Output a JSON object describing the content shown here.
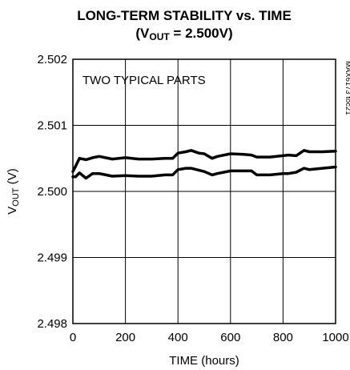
{
  "chart_data": {
    "type": "line",
    "title_line1": "LONG-TERM STABILITY vs. TIME",
    "title_line2_open": "(V",
    "title_line2_sub": "OUT",
    "title_line2_close": " = 2.500V)",
    "xlabel": "TIME (hours)",
    "ylabel_main": "V",
    "ylabel_sub": "OUT",
    "ylabel_unit": " (V)",
    "annotation": "TWO TYPICAL PARTS",
    "figure_code": "MAX6173 toc21",
    "xlim": [
      0,
      1000
    ],
    "ylim": [
      2.498,
      2.502
    ],
    "x_ticks": [
      0,
      200,
      400,
      600,
      800,
      1000
    ],
    "x_tick_labels": [
      "0",
      "200",
      "400",
      "600",
      "800",
      "1000"
    ],
    "y_ticks": [
      2.498,
      2.499,
      2.5,
      2.501,
      2.502
    ],
    "y_tick_labels": [
      "2.498",
      "2.499",
      "2.500",
      "2.501",
      "2.502"
    ],
    "grid": true,
    "series": [
      {
        "x": [
          0,
          10,
          25,
          50,
          75,
          100,
          150,
          200,
          250,
          300,
          350,
          380,
          400,
          430,
          450,
          480,
          500,
          530,
          550,
          600,
          650,
          680,
          700,
          750,
          800,
          820,
          850,
          880,
          900,
          950,
          1000
        ],
        "values": [
          2.5003,
          2.50038,
          2.5005,
          2.50048,
          2.50051,
          2.50053,
          2.50049,
          2.50051,
          2.50049,
          2.50049,
          2.5005,
          2.5005,
          2.50058,
          2.5006,
          2.50062,
          2.50058,
          2.50057,
          2.5005,
          2.50053,
          2.50057,
          2.50056,
          2.50055,
          2.50052,
          2.50052,
          2.50054,
          2.50055,
          2.50054,
          2.50062,
          2.5006,
          2.5006,
          2.50061
        ]
      },
      {
        "x": [
          0,
          10,
          25,
          50,
          75,
          100,
          150,
          200,
          250,
          300,
          350,
          380,
          400,
          430,
          450,
          480,
          500,
          530,
          550,
          600,
          650,
          680,
          700,
          750,
          800,
          820,
          850,
          880,
          900,
          950,
          1000
        ],
        "values": [
          2.50022,
          2.50022,
          2.50028,
          2.5002,
          2.50027,
          2.50027,
          2.50023,
          2.50024,
          2.50023,
          2.50023,
          2.50025,
          2.50025,
          2.50033,
          2.50035,
          2.50035,
          2.50032,
          2.5003,
          2.50025,
          2.50027,
          2.50031,
          2.50031,
          2.50031,
          2.50025,
          2.50025,
          2.50027,
          2.50027,
          2.50029,
          2.50035,
          2.50033,
          2.50035,
          2.50037
        ]
      }
    ]
  }
}
